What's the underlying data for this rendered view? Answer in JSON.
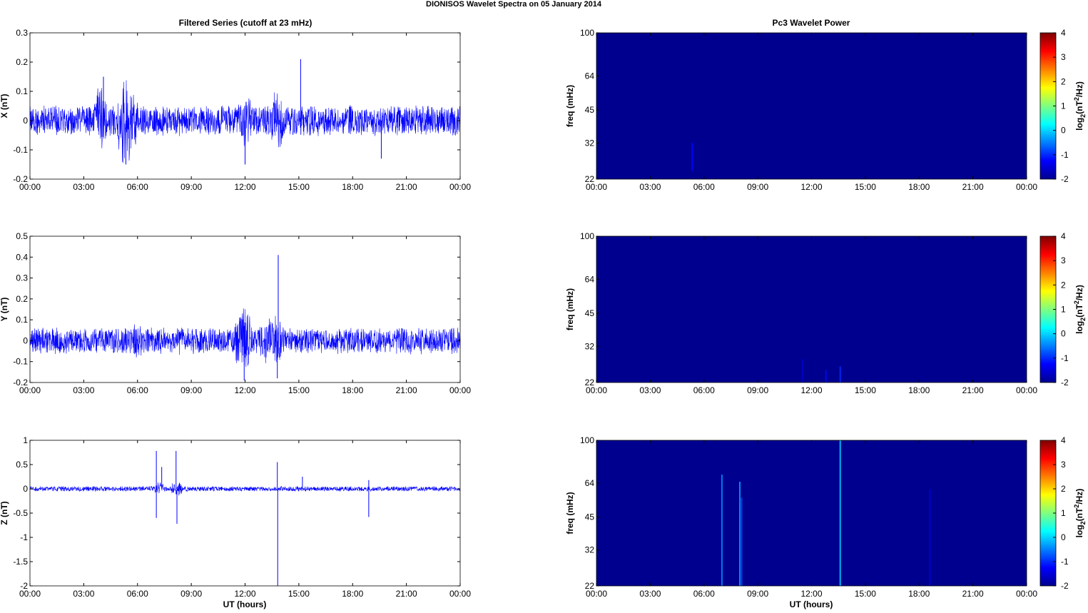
{
  "figure": {
    "title": "DIONISOS Wavelet Spectra on 05 January   2014",
    "left_title": "Filtered Series (cutoff at 23 mHz)",
    "right_title": "Pc3 Wavelet Power",
    "xlabel": "UT (hours)"
  },
  "colors": {
    "series": "#0000ff",
    "spectrogram_bg": "#00008f"
  },
  "chart_data": [
    {
      "type": "line",
      "name": "X",
      "ylabel": "X (nT)",
      "xlim": [
        "00:00",
        "00:00"
      ],
      "ylim": [
        -0.2,
        0.3
      ],
      "x_ticks": [
        "00:00",
        "03:00",
        "06:00",
        "09:00",
        "12:00",
        "15:00",
        "18:00",
        "21:00",
        "00:00"
      ],
      "y_ticks": [
        "0.3",
        "0.2",
        "0.1",
        "0",
        "-0.1",
        "-0.2"
      ],
      "y_tick_values": [
        0.3,
        0.2,
        0.1,
        0,
        -0.1,
        -0.2
      ],
      "baseline_amplitude": 0.05,
      "bursts": [
        {
          "hour": 3.95,
          "width": 0.5,
          "amplitude": 0.13
        },
        {
          "hour": 5.4,
          "width": 0.8,
          "amplitude": 0.17
        },
        {
          "hour": 12.0,
          "width": 0.6,
          "amplitude": 0.1
        },
        {
          "hour": 13.8,
          "width": 0.5,
          "amplitude": 0.12
        }
      ],
      "spikes": [
        {
          "hour": 15.1,
          "value": 0.21
        },
        {
          "hour": 12.0,
          "value": -0.15
        },
        {
          "hour": 5.35,
          "value": -0.15
        },
        {
          "hour": 19.6,
          "value": -0.13
        },
        {
          "hour": 4.1,
          "value": 0.15
        }
      ]
    },
    {
      "type": "line",
      "name": "Y",
      "ylabel": "Y (nT)",
      "xlim": [
        "00:00",
        "00:00"
      ],
      "ylim": [
        -0.2,
        0.5
      ],
      "x_ticks": [
        "00:00",
        "03:00",
        "06:00",
        "09:00",
        "12:00",
        "15:00",
        "18:00",
        "21:00",
        "00:00"
      ],
      "y_ticks": [
        "0.5",
        "0.4",
        "0.3",
        "0.2",
        "0.1",
        "0",
        "-0.1",
        "-0.2"
      ],
      "y_tick_values": [
        0.5,
        0.4,
        0.3,
        0.2,
        0.1,
        0,
        -0.1,
        -0.2
      ],
      "baseline_amplitude": 0.06,
      "bursts": [
        {
          "hour": 5.9,
          "width": 0.6,
          "amplitude": 0.1
        },
        {
          "hour": 8.3,
          "width": 0.5,
          "amplitude": 0.08
        },
        {
          "hour": 11.9,
          "width": 0.7,
          "amplitude": 0.18
        },
        {
          "hour": 13.2,
          "width": 0.6,
          "amplitude": 0.14
        },
        {
          "hour": 13.8,
          "width": 0.3,
          "amplitude": 0.15
        }
      ],
      "spikes": [
        {
          "hour": 13.85,
          "value": 0.41
        },
        {
          "hour": 11.95,
          "value": -0.19
        },
        {
          "hour": 13.8,
          "value": -0.18
        }
      ]
    },
    {
      "type": "line",
      "name": "Z",
      "ylabel": "Z (nT)",
      "xlim": [
        "00:00",
        "00:00"
      ],
      "ylim": [
        -2,
        1
      ],
      "x_ticks": [
        "00:00",
        "03:00",
        "06:00",
        "09:00",
        "12:00",
        "15:00",
        "18:00",
        "21:00",
        "00:00"
      ],
      "y_ticks": [
        "1",
        "0.5",
        "0",
        "-0.5",
        "-1",
        "-1.5",
        "-2"
      ],
      "y_tick_values": [
        1,
        0.5,
        0,
        -0.5,
        -1,
        -1.5,
        -2
      ],
      "baseline_amplitude": 0.05,
      "bursts": [
        {
          "hour": 7.2,
          "width": 0.4,
          "amplitude": 0.15
        },
        {
          "hour": 8.2,
          "width": 0.4,
          "amplitude": 0.2
        }
      ],
      "spikes": [
        {
          "hour": 7.05,
          "value": 0.78
        },
        {
          "hour": 7.05,
          "value": -0.6
        },
        {
          "hour": 7.35,
          "value": 0.45
        },
        {
          "hour": 8.15,
          "value": 0.78
        },
        {
          "hour": 8.2,
          "value": -0.72
        },
        {
          "hour": 13.8,
          "value": 0.55
        },
        {
          "hour": 13.82,
          "value": -2.0
        },
        {
          "hour": 18.9,
          "value": 0.18
        },
        {
          "hour": 18.9,
          "value": -0.58
        },
        {
          "hour": 15.2,
          "value": 0.25
        }
      ]
    },
    {
      "type": "heatmap",
      "ylabel": "freq (mHz)",
      "y_scale": "log",
      "ylim": [
        22,
        100
      ],
      "x_ticks": [
        "00:00",
        "03:00",
        "06:00",
        "09:00",
        "12:00",
        "15:00",
        "18:00",
        "21:00",
        "00:00"
      ],
      "y_ticks": [
        "100",
        "64",
        "45",
        "32",
        "22"
      ],
      "y_tick_values": [
        100,
        64,
        45,
        32,
        22
      ],
      "colorbar_label": "log2(nT2/Hz)",
      "colorbar_ticks": [
        "4",
        "3",
        "2",
        "1",
        "0",
        "-1",
        "-2"
      ],
      "clim": [
        -2,
        4
      ],
      "streaks": [
        {
          "hour": 5.35,
          "f_low": 24,
          "f_high": 32,
          "level": -1.2
        }
      ]
    },
    {
      "type": "heatmap",
      "ylabel": "freq (mHz)",
      "y_scale": "log",
      "ylim": [
        22,
        100
      ],
      "x_ticks": [
        "00:00",
        "03:00",
        "06:00",
        "09:00",
        "12:00",
        "15:00",
        "18:00",
        "21:00",
        "00:00"
      ],
      "y_ticks": [
        "100",
        "64",
        "45",
        "32",
        "22"
      ],
      "y_tick_values": [
        100,
        64,
        45,
        32,
        22
      ],
      "colorbar_label": "log2(nT2/Hz)",
      "colorbar_ticks": [
        "4",
        "3",
        "2",
        "1",
        "0",
        "-1",
        "-2"
      ],
      "clim": [
        -2,
        4
      ],
      "streaks": [
        {
          "hour": 11.5,
          "f_low": 22,
          "f_high": 28,
          "level": -1.6
        },
        {
          "hour": 12.8,
          "f_low": 22,
          "f_high": 25,
          "level": -1.2
        },
        {
          "hour": 13.6,
          "f_low": 22,
          "f_high": 26,
          "level": -1.0
        }
      ]
    },
    {
      "type": "heatmap",
      "ylabel": "freq (mHz)",
      "y_scale": "log",
      "ylim": [
        22,
        100
      ],
      "x_ticks": [
        "00:00",
        "03:00",
        "06:00",
        "09:00",
        "12:00",
        "15:00",
        "18:00",
        "21:00",
        "00:00"
      ],
      "y_ticks": [
        "100",
        "64",
        "45",
        "32",
        "22"
      ],
      "y_tick_values": [
        100,
        64,
        45,
        32,
        22
      ],
      "colorbar_label": "log2(nT2/Hz)",
      "colorbar_ticks": [
        "4",
        "3",
        "2",
        "1",
        "0",
        "-1",
        "-2"
      ],
      "clim": [
        -2,
        4
      ],
      "streaks": [
        {
          "hour": 7.0,
          "f_low": 22,
          "f_high": 70,
          "level": -0.4
        },
        {
          "hour": 8.0,
          "f_low": 22,
          "f_high": 65,
          "level": -0.3
        },
        {
          "hour": 8.1,
          "f_low": 22,
          "f_high": 55,
          "level": -0.8
        },
        {
          "hour": 13.6,
          "f_low": 22,
          "f_high": 100,
          "level": 0.0
        },
        {
          "hour": 18.6,
          "f_low": 22,
          "f_high": 60,
          "level": -1.5
        }
      ]
    }
  ]
}
